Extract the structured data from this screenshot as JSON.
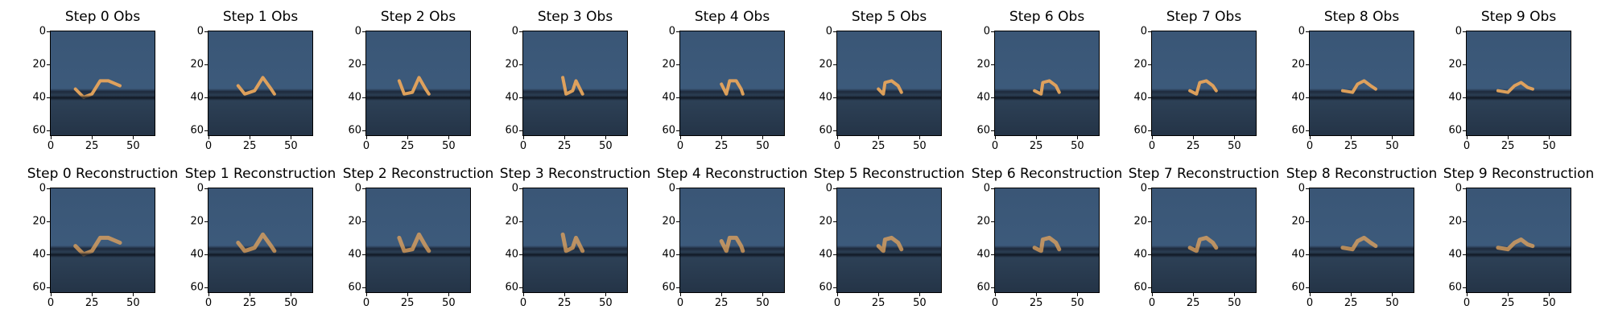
{
  "rows": [
    {
      "name": "obs",
      "titles": [
        "Step 0 Obs",
        "Step 1 Obs",
        "Step 2 Obs",
        "Step 3 Obs",
        "Step 4 Obs",
        "Step 5 Obs",
        "Step 6 Obs",
        "Step 7 Obs",
        "Step 8 Obs",
        "Step 9 Obs"
      ]
    },
    {
      "name": "reconstruction",
      "titles": [
        "Step 0 Reconstruction",
        "Step 1 Reconstruction",
        "Step 2 Reconstruction",
        "Step 3 Reconstruction",
        "Step 4 Reconstruction",
        "Step 5 Reconstruction",
        "Step 6 Reconstruction",
        "Step 7 Reconstruction",
        "Step 8 Reconstruction",
        "Step 9 Reconstruction"
      ]
    }
  ],
  "axes": {
    "y_ticks": [
      "0",
      "20",
      "40",
      "60"
    ],
    "x_ticks": [
      "0",
      "25",
      "50"
    ]
  },
  "colors": {
    "background_top": "#3c5a7b",
    "floor_line": "#0f1620",
    "agent": "#e7a55c"
  }
}
